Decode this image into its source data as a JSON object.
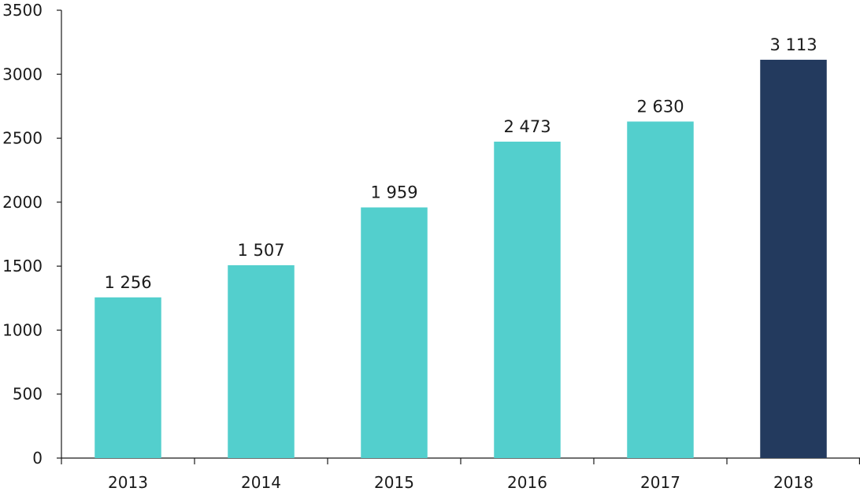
{
  "chart_data": {
    "type": "bar",
    "title": "",
    "xlabel": "",
    "ylabel": "",
    "categories": [
      "2013",
      "2014",
      "2015",
      "2016",
      "2017",
      "2018"
    ],
    "values": [
      1256,
      1507,
      1959,
      2473,
      2630,
      3113
    ],
    "value_labels": [
      "1 256",
      "1 507",
      "1 959",
      "2 473",
      "2 630",
      "3 113"
    ],
    "ylim": [
      0,
      3500
    ],
    "yticks": [
      0,
      500,
      1000,
      1500,
      2000,
      2500,
      3000,
      3500
    ],
    "grid": false,
    "legend": "none",
    "colors": {
      "default_bar": "#53cfcd",
      "highlight_bar": "#233a5e",
      "highlight_index": 5
    }
  }
}
